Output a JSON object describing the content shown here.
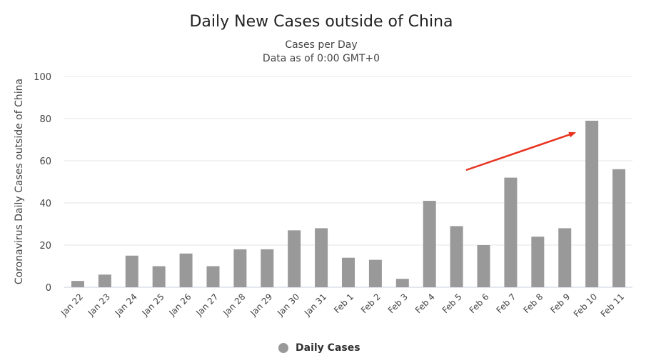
{
  "chart_data": {
    "type": "bar",
    "title": "Daily New Cases outside of China",
    "subtitle": [
      "Cases per Day",
      "Data as of 0:00 GMT+0"
    ],
    "xlabel": "",
    "ylabel": "Coronavirus Daily Cases outside of China",
    "ylim": [
      0,
      100
    ],
    "yticks": [
      0,
      20,
      40,
      60,
      80,
      100
    ],
    "grid": true,
    "categories": [
      "Jan 22",
      "Jan 23",
      "Jan 24",
      "Jan 25",
      "Jan 26",
      "Jan 27",
      "Jan 28",
      "Jan 29",
      "Jan 30",
      "Jan 31",
      "Feb 1",
      "Feb 2",
      "Feb 3",
      "Feb 4",
      "Feb 5",
      "Feb 6",
      "Feb 7",
      "Feb 8",
      "Feb 9",
      "Feb 10",
      "Feb 11"
    ],
    "series": [
      {
        "name": "Daily Cases",
        "color": "#999999",
        "values": [
          3,
          6,
          15,
          10,
          16,
          10,
          18,
          18,
          27,
          28,
          14,
          13,
          4,
          41,
          29,
          20,
          52,
          24,
          28,
          79,
          56
        ]
      }
    ],
    "annotations": [
      {
        "type": "arrow",
        "color": "#e8321f",
        "points_to": "Feb 10"
      }
    ],
    "legend": "bottom-center"
  }
}
